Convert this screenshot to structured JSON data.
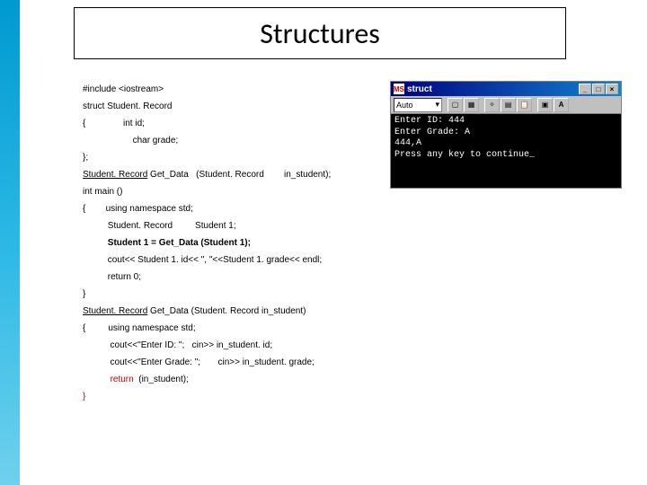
{
  "accent_bar_color": "#2bb8e5",
  "title": "Structures",
  "title_fontsize": 32,
  "code": {
    "l1": "#include <iostream>",
    "l2": "struct Student. Record",
    "l3": "{               int id;",
    "l4": "                    char grade;",
    "l5": "};",
    "l6_a": "Student. Record",
    "l6_b": " Get_Data   (Student. Record        in_student);",
    "l7": "int main ()",
    "l8": "{        using namespace std;",
    "l9": "          Student. Record         Student 1;",
    "l10": "          Student 1 = Get_Data (Student 1);",
    "l11": "          cout<< Student 1. id<< \", \"<<Student 1. grade<< endl;",
    "l12": "          return 0;",
    "l13": "}",
    "l14_a": "Student. Record",
    "l14_b": " Get_Data (Student. Record in_student)",
    "l15": "{         using namespace std;",
    "l16": "           cout<<\"Enter ID: \";   cin>> in_student. id;",
    "l17": "           cout<<\"Enter Grade: \";       cin>> in_student. grade;",
    "l18_a": "           ",
    "l18_b": "return",
    "l18_c": "  (in_student);",
    "l19": "}"
  },
  "console": {
    "title": "struct",
    "toolbar_select": "Auto",
    "body": "Enter ID: 444\nEnter Grade: A\n444,A\nPress any key to continue_",
    "bg_color": "#000000",
    "text_color": "#ffffff",
    "title_bg": "#000080"
  }
}
